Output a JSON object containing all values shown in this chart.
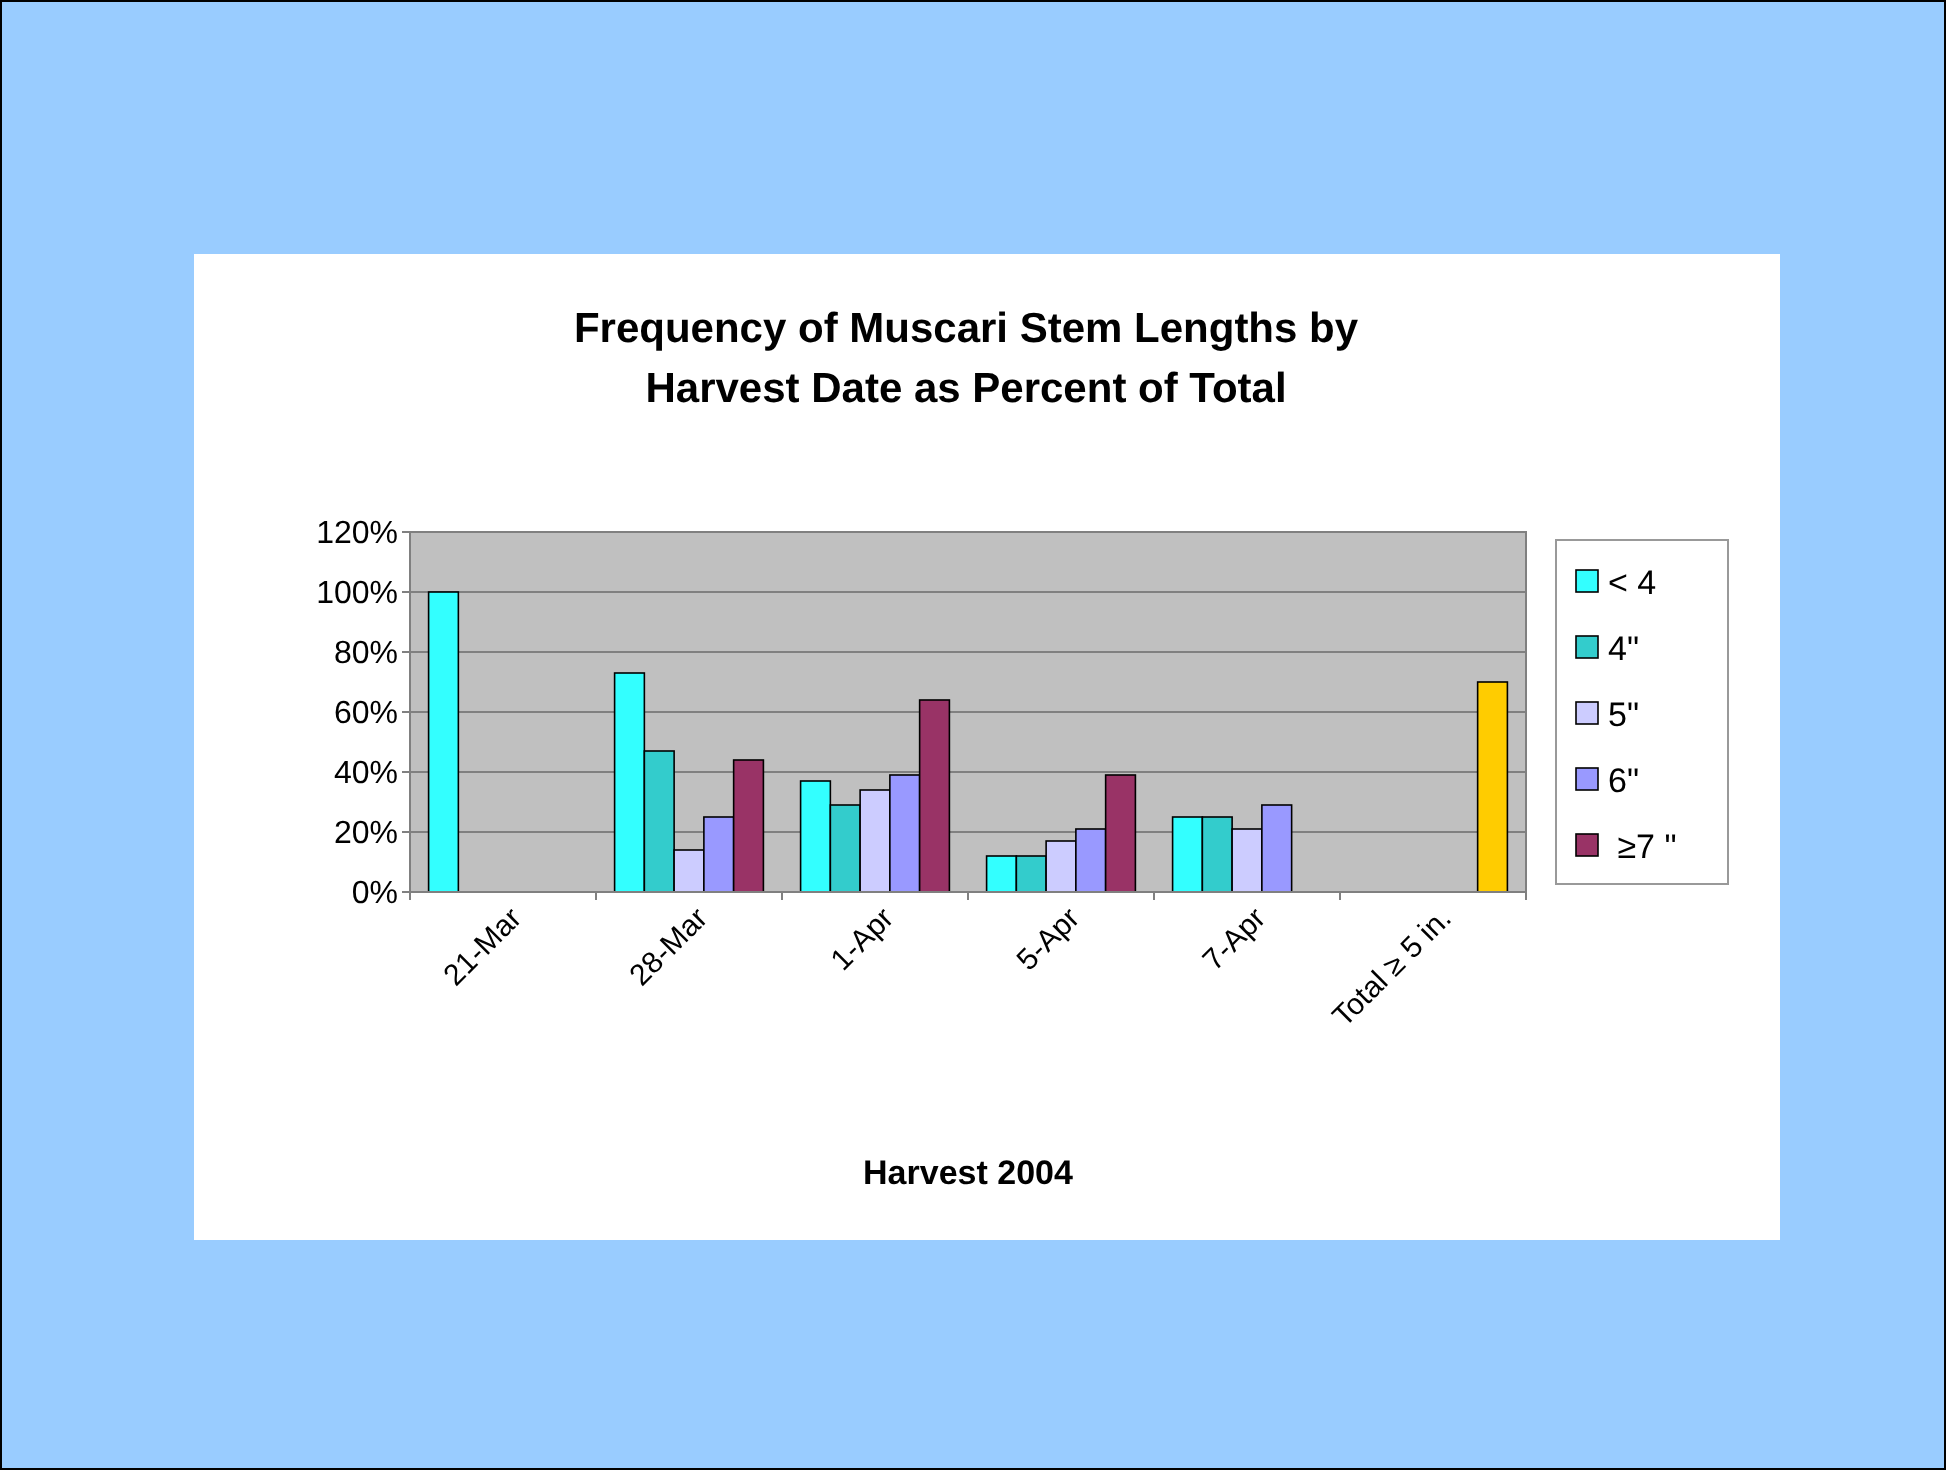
{
  "chart_data": {
    "type": "bar",
    "title": "Frequency of Muscari Stem Lengths  by\nHarvest Date as Percent of Total",
    "xlabel": "Harvest 2004",
    "categories": [
      "21-Mar",
      "28-Mar",
      "1-Apr",
      "5-Apr",
      "7-Apr",
      "Total ≥ 5 in."
    ],
    "series": [
      {
        "name": "< 4",
        "color": "#33ffff",
        "values": [
          100,
          73,
          37,
          12,
          25,
          null
        ]
      },
      {
        "name": "4\"",
        "color": "#33cccc",
        "values": [
          null,
          47,
          29,
          12,
          25,
          null
        ]
      },
      {
        "name": "5\"",
        "color": "#ccccff",
        "values": [
          null,
          14,
          34,
          17,
          21,
          null
        ]
      },
      {
        "name": "6\"",
        "color": "#9999ff",
        "values": [
          null,
          25,
          39,
          21,
          29,
          null
        ]
      },
      {
        "name": " ≥7 \"",
        "color": "#993366",
        "colors": [
          "#993366",
          "#993366",
          "#993366",
          "#993366",
          "#993366",
          "#ffcc00"
        ],
        "values": [
          null,
          44,
          64,
          39,
          null,
          70
        ]
      }
    ],
    "ylim": [
      0,
      120
    ],
    "yticks": [
      {
        "value": 0,
        "label": "0%"
      },
      {
        "value": 20,
        "label": "20%"
      },
      {
        "value": 40,
        "label": "40%"
      },
      {
        "value": 60,
        "label": "60%"
      },
      {
        "value": 80,
        "label": "80%"
      },
      {
        "value": 100,
        "label": "100%"
      },
      {
        "value": 120,
        "label": "120%"
      }
    ],
    "grid": "y",
    "legend": "right"
  }
}
